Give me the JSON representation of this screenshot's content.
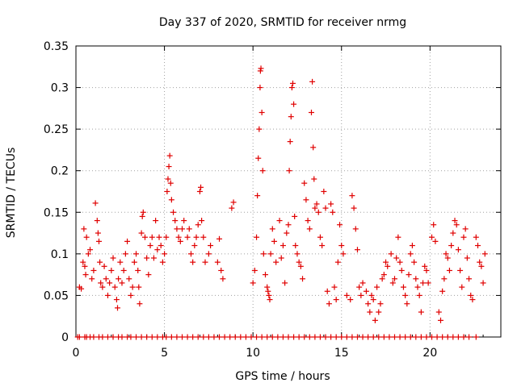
{
  "chart_data": {
    "type": "scatter",
    "title": "Day 337 of 2020, SRMTID for receiver nrmg",
    "xlabel": "GPS time / hours",
    "ylabel": "SRMTID / TECUs",
    "xlim": [
      0,
      24
    ],
    "ylim": [
      0,
      0.35
    ],
    "xticks": [
      0,
      5,
      10,
      15,
      20
    ],
    "xtick_labels": [
      "0",
      "5",
      "10",
      "15",
      "20"
    ],
    "yticks": [
      0,
      0.05,
      0.1,
      0.15,
      0.2,
      0.25,
      0.3,
      0.35
    ],
    "ytick_labels": [
      "0",
      "0.05",
      "0.1",
      "0.15",
      "0.2",
      "0.25",
      "0.3",
      "0.35"
    ],
    "grid": true,
    "marker": "+",
    "color": "#e00000",
    "series": [
      {
        "name": "SRMTID",
        "points": [
          [
            0.1,
            0.0
          ],
          [
            0.2,
            0.0
          ],
          [
            0.5,
            0.0
          ],
          [
            0.6,
            0.0
          ],
          [
            0.8,
            0.0
          ],
          [
            1.0,
            0.0
          ],
          [
            1.3,
            0.0
          ],
          [
            1.5,
            0.0
          ],
          [
            1.8,
            0.0
          ],
          [
            2.1,
            0.0
          ],
          [
            2.4,
            0.0
          ],
          [
            2.6,
            0.0
          ],
          [
            2.9,
            0.0
          ],
          [
            3.1,
            0.0
          ],
          [
            3.4,
            0.0
          ],
          [
            3.7,
            0.0
          ],
          [
            4.0,
            0.0
          ],
          [
            4.3,
            0.0
          ],
          [
            4.6,
            0.0
          ],
          [
            4.9,
            0.0
          ],
          [
            5.1,
            0.0
          ],
          [
            5.4,
            0.0
          ],
          [
            5.7,
            0.0
          ],
          [
            6.0,
            0.0
          ],
          [
            6.3,
            0.0
          ],
          [
            6.6,
            0.0
          ],
          [
            6.9,
            0.0
          ],
          [
            7.2,
            0.0
          ],
          [
            7.5,
            0.0
          ],
          [
            7.8,
            0.0
          ],
          [
            8.1,
            0.0
          ],
          [
            8.4,
            0.0
          ],
          [
            8.7,
            0.0
          ],
          [
            9.0,
            0.0
          ],
          [
            9.3,
            0.0
          ],
          [
            9.6,
            0.0
          ],
          [
            9.9,
            0.0
          ],
          [
            10.2,
            0.0
          ],
          [
            10.5,
            0.0
          ],
          [
            10.8,
            0.0
          ],
          [
            11.1,
            0.0
          ],
          [
            11.4,
            0.0
          ],
          [
            11.7,
            0.0
          ],
          [
            12.0,
            0.0
          ],
          [
            12.3,
            0.0
          ],
          [
            12.6,
            0.0
          ],
          [
            12.9,
            0.0
          ],
          [
            13.2,
            0.0
          ],
          [
            13.5,
            0.0
          ],
          [
            13.8,
            0.0
          ],
          [
            14.1,
            0.0
          ],
          [
            14.4,
            0.0
          ],
          [
            14.7,
            0.0
          ],
          [
            15.0,
            0.0
          ],
          [
            15.3,
            0.0
          ],
          [
            15.6,
            0.0
          ],
          [
            15.9,
            0.0
          ],
          [
            16.2,
            0.0
          ],
          [
            16.5,
            0.0
          ],
          [
            16.8,
            0.0
          ],
          [
            17.1,
            0.0
          ],
          [
            17.4,
            0.0
          ],
          [
            17.7,
            0.0
          ],
          [
            18.0,
            0.0
          ],
          [
            18.3,
            0.0
          ],
          [
            18.6,
            0.0
          ],
          [
            18.9,
            0.0
          ],
          [
            19.2,
            0.0
          ],
          [
            19.5,
            0.0
          ],
          [
            19.8,
            0.0
          ],
          [
            20.1,
            0.0
          ],
          [
            20.4,
            0.0
          ],
          [
            20.7,
            0.0
          ],
          [
            21.0,
            0.0
          ],
          [
            21.3,
            0.0
          ],
          [
            21.6,
            0.0
          ],
          [
            21.9,
            0.0
          ],
          [
            22.2,
            0.0
          ],
          [
            22.6,
            0.0
          ],
          [
            0.2,
            0.06
          ],
          [
            0.3,
            0.058
          ],
          [
            0.4,
            0.09
          ],
          [
            0.45,
            0.13
          ],
          [
            0.5,
            0.085
          ],
          [
            0.55,
            0.075
          ],
          [
            0.6,
            0.12
          ],
          [
            0.7,
            0.1
          ],
          [
            0.8,
            0.105
          ],
          [
            0.9,
            0.07
          ],
          [
            1.0,
            0.08
          ],
          [
            1.1,
            0.161
          ],
          [
            1.2,
            0.14
          ],
          [
            1.25,
            0.125
          ],
          [
            1.3,
            0.115
          ],
          [
            1.35,
            0.09
          ],
          [
            1.4,
            0.065
          ],
          [
            1.5,
            0.06
          ],
          [
            1.6,
            0.085
          ],
          [
            1.7,
            0.07
          ],
          [
            1.8,
            0.05
          ],
          [
            1.9,
            0.065
          ],
          [
            2.0,
            0.08
          ],
          [
            2.1,
            0.095
          ],
          [
            2.2,
            0.06
          ],
          [
            2.3,
            0.045
          ],
          [
            2.35,
            0.035
          ],
          [
            2.4,
            0.07
          ],
          [
            2.5,
            0.09
          ],
          [
            2.6,
            0.065
          ],
          [
            2.7,
            0.08
          ],
          [
            2.8,
            0.1
          ],
          [
            2.9,
            0.115
          ],
          [
            3.0,
            0.07
          ],
          [
            3.1,
            0.05
          ],
          [
            3.2,
            0.06
          ],
          [
            3.3,
            0.09
          ],
          [
            3.4,
            0.1
          ],
          [
            3.5,
            0.08
          ],
          [
            3.55,
            0.06
          ],
          [
            3.6,
            0.04
          ],
          [
            3.7,
            0.125
          ],
          [
            3.75,
            0.145
          ],
          [
            3.8,
            0.15
          ],
          [
            3.9,
            0.12
          ],
          [
            4.0,
            0.095
          ],
          [
            4.1,
            0.075
          ],
          [
            4.2,
            0.11
          ],
          [
            4.3,
            0.12
          ],
          [
            4.4,
            0.095
          ],
          [
            4.5,
            0.14
          ],
          [
            4.6,
            0.105
          ],
          [
            4.7,
            0.12
          ],
          [
            4.8,
            0.11
          ],
          [
            4.9,
            0.09
          ],
          [
            5.0,
            0.1
          ],
          [
            5.1,
            0.12
          ],
          [
            5.15,
            0.175
          ],
          [
            5.2,
            0.19
          ],
          [
            5.25,
            0.205
          ],
          [
            5.3,
            0.218
          ],
          [
            5.35,
            0.185
          ],
          [
            5.4,
            0.165
          ],
          [
            5.5,
            0.15
          ],
          [
            5.6,
            0.14
          ],
          [
            5.7,
            0.13
          ],
          [
            5.8,
            0.12
          ],
          [
            5.9,
            0.115
          ],
          [
            6.0,
            0.13
          ],
          [
            6.1,
            0.14
          ],
          [
            6.3,
            0.12
          ],
          [
            6.4,
            0.13
          ],
          [
            6.5,
            0.1
          ],
          [
            6.6,
            0.09
          ],
          [
            6.7,
            0.11
          ],
          [
            6.8,
            0.12
          ],
          [
            6.9,
            0.135
          ],
          [
            7.0,
            0.175
          ],
          [
            7.05,
            0.18
          ],
          [
            7.1,
            0.14
          ],
          [
            7.2,
            0.12
          ],
          [
            7.3,
            0.09
          ],
          [
            7.5,
            0.1
          ],
          [
            7.6,
            0.11
          ],
          [
            8.0,
            0.09
          ],
          [
            8.1,
            0.118
          ],
          [
            8.2,
            0.08
          ],
          [
            8.3,
            0.07
          ],
          [
            8.8,
            0.155
          ],
          [
            8.9,
            0.162
          ],
          [
            10.0,
            0.065
          ],
          [
            10.1,
            0.08
          ],
          [
            10.2,
            0.12
          ],
          [
            10.25,
            0.17
          ],
          [
            10.3,
            0.215
          ],
          [
            10.35,
            0.25
          ],
          [
            10.4,
            0.3
          ],
          [
            10.42,
            0.32
          ],
          [
            10.45,
            0.323
          ],
          [
            10.5,
            0.27
          ],
          [
            10.55,
            0.2
          ],
          [
            10.6,
            0.1
          ],
          [
            10.7,
            0.075
          ],
          [
            10.8,
            0.06
          ],
          [
            10.85,
            0.055
          ],
          [
            10.9,
            0.05
          ],
          [
            10.95,
            0.045
          ],
          [
            11.0,
            0.1
          ],
          [
            11.1,
            0.13
          ],
          [
            11.2,
            0.115
          ],
          [
            11.3,
            0.09
          ],
          [
            11.5,
            0.14
          ],
          [
            11.6,
            0.095
          ],
          [
            11.7,
            0.11
          ],
          [
            11.8,
            0.065
          ],
          [
            11.9,
            0.125
          ],
          [
            12.0,
            0.135
          ],
          [
            12.05,
            0.2
          ],
          [
            12.1,
            0.235
          ],
          [
            12.15,
            0.265
          ],
          [
            12.2,
            0.3
          ],
          [
            12.25,
            0.305
          ],
          [
            12.3,
            0.28
          ],
          [
            12.35,
            0.145
          ],
          [
            12.4,
            0.11
          ],
          [
            12.5,
            0.1
          ],
          [
            12.6,
            0.09
          ],
          [
            12.7,
            0.085
          ],
          [
            12.8,
            0.07
          ],
          [
            12.9,
            0.185
          ],
          [
            13.0,
            0.165
          ],
          [
            13.1,
            0.14
          ],
          [
            13.2,
            0.13
          ],
          [
            13.3,
            0.27
          ],
          [
            13.35,
            0.307
          ],
          [
            13.4,
            0.228
          ],
          [
            13.45,
            0.19
          ],
          [
            13.5,
            0.155
          ],
          [
            13.6,
            0.16
          ],
          [
            13.7,
            0.15
          ],
          [
            13.8,
            0.12
          ],
          [
            13.9,
            0.11
          ],
          [
            14.0,
            0.175
          ],
          [
            14.1,
            0.155
          ],
          [
            14.2,
            0.055
          ],
          [
            14.3,
            0.04
          ],
          [
            14.4,
            0.16
          ],
          [
            14.5,
            0.15
          ],
          [
            14.6,
            0.06
          ],
          [
            14.7,
            0.045
          ],
          [
            14.8,
            0.09
          ],
          [
            14.9,
            0.135
          ],
          [
            15.0,
            0.11
          ],
          [
            15.1,
            0.1
          ],
          [
            15.3,
            0.05
          ],
          [
            15.5,
            0.045
          ],
          [
            15.6,
            0.17
          ],
          [
            15.7,
            0.155
          ],
          [
            15.8,
            0.13
          ],
          [
            15.9,
            0.105
          ],
          [
            16.0,
            0.06
          ],
          [
            16.1,
            0.05
          ],
          [
            16.2,
            0.065
          ],
          [
            16.4,
            0.055
          ],
          [
            16.5,
            0.04
          ],
          [
            16.6,
            0.03
          ],
          [
            16.7,
            0.05
          ],
          [
            16.8,
            0.045
          ],
          [
            16.9,
            0.02
          ],
          [
            17.0,
            0.06
          ],
          [
            17.1,
            0.03
          ],
          [
            17.2,
            0.04
          ],
          [
            17.3,
            0.07
          ],
          [
            17.4,
            0.075
          ],
          [
            17.5,
            0.09
          ],
          [
            17.6,
            0.085
          ],
          [
            17.8,
            0.1
          ],
          [
            17.9,
            0.065
          ],
          [
            18.0,
            0.07
          ],
          [
            18.1,
            0.095
          ],
          [
            18.2,
            0.12
          ],
          [
            18.3,
            0.09
          ],
          [
            18.4,
            0.08
          ],
          [
            18.5,
            0.06
          ],
          [
            18.6,
            0.05
          ],
          [
            18.7,
            0.04
          ],
          [
            18.8,
            0.075
          ],
          [
            18.9,
            0.1
          ],
          [
            19.0,
            0.11
          ],
          [
            19.1,
            0.09
          ],
          [
            19.2,
            0.07
          ],
          [
            19.3,
            0.06
          ],
          [
            19.4,
            0.05
          ],
          [
            19.5,
            0.03
          ],
          [
            19.6,
            0.065
          ],
          [
            19.7,
            0.085
          ],
          [
            19.8,
            0.08
          ],
          [
            19.9,
            0.065
          ],
          [
            20.1,
            0.12
          ],
          [
            20.2,
            0.135
          ],
          [
            20.3,
            0.115
          ],
          [
            20.5,
            0.03
          ],
          [
            20.6,
            0.02
          ],
          [
            20.7,
            0.055
          ],
          [
            20.8,
            0.07
          ],
          [
            20.9,
            0.1
          ],
          [
            21.0,
            0.095
          ],
          [
            21.1,
            0.08
          ],
          [
            21.2,
            0.11
          ],
          [
            21.3,
            0.125
          ],
          [
            21.4,
            0.14
          ],
          [
            21.5,
            0.135
          ],
          [
            21.6,
            0.105
          ],
          [
            21.7,
            0.08
          ],
          [
            21.8,
            0.06
          ],
          [
            21.9,
            0.12
          ],
          [
            22.0,
            0.13
          ],
          [
            22.1,
            0.095
          ],
          [
            22.2,
            0.07
          ],
          [
            22.3,
            0.05
          ],
          [
            22.4,
            0.045
          ],
          [
            22.6,
            0.12
          ],
          [
            22.7,
            0.11
          ],
          [
            22.8,
            0.09
          ],
          [
            22.9,
            0.085
          ],
          [
            23.0,
            0.065
          ],
          [
            23.1,
            0.1
          ]
        ]
      }
    ]
  }
}
